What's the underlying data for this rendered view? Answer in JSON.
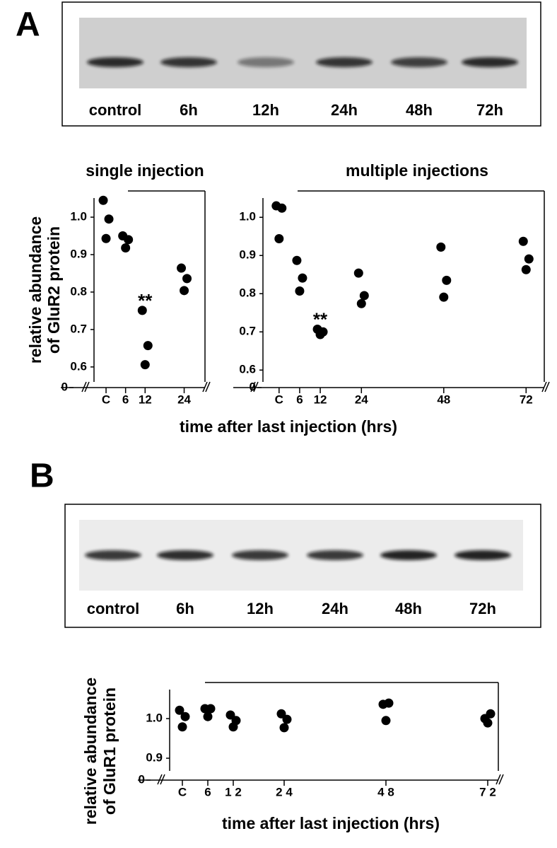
{
  "panels": [
    {
      "label": "A",
      "lanes": [
        "control",
        "6h",
        "12h",
        "24h",
        "48h",
        "72h"
      ]
    },
    {
      "label": "B",
      "lanes": [
        "control",
        "6h",
        "12h",
        "24h",
        "48h",
        "72h"
      ]
    }
  ],
  "chart_data": [
    {
      "type": "scatter",
      "title": "single injection",
      "ylabel": [
        "relative abundance",
        "of GluR2 protein"
      ],
      "xlabel": "time after last injection (hrs)",
      "color": "#000000",
      "axis_break": true,
      "x": [
        0,
        0,
        0,
        6,
        6,
        6,
        12,
        12,
        12,
        24,
        24,
        24
      ],
      "values": [
        1.045,
        0.995,
        0.943,
        0.95,
        0.94,
        0.918,
        0.751,
        0.657,
        0.606,
        0.864,
        0.836,
        0.804
      ],
      "xlim": [
        -3.7,
        30.4
      ],
      "xticks": [
        {
          "value": 0,
          "label": "C"
        },
        6,
        12,
        24
      ],
      "ylim": [
        0.56,
        1.07
      ],
      "yticks": [
        0,
        0.6,
        0.7,
        0.8,
        0.9,
        {
          "value": 1,
          "label": "1.0"
        }
      ],
      "annotations": [
        {
          "text": "**",
          "x": 12
        }
      ]
    },
    {
      "type": "scatter",
      "title": "multiple injections",
      "color": "#000000",
      "axis_break": true,
      "x": [
        0,
        0,
        0,
        6,
        6,
        6,
        12,
        12,
        12,
        24,
        24,
        24,
        48,
        48,
        48,
        72,
        72,
        72
      ],
      "values": [
        1.03,
        1.024,
        0.944,
        0.887,
        0.841,
        0.807,
        0.707,
        0.7,
        0.693,
        0.854,
        0.795,
        0.774,
        0.922,
        0.835,
        0.791,
        0.937,
        0.891,
        0.863
      ],
      "xlim": [
        -4.7,
        77.3
      ],
      "xticks": [
        {
          "value": 0,
          "label": "C"
        },
        6,
        12,
        24,
        48,
        72
      ],
      "ylim": [
        0.569,
        1.069
      ],
      "yticks": [
        0,
        0.6,
        0.7,
        0.8,
        0.9,
        {
          "value": 1,
          "label": "1.0"
        }
      ],
      "annotations": [
        {
          "text": "**",
          "x": 12
        }
      ]
    },
    {
      "type": "scatter",
      "ylabel": [
        "relative abundance",
        "of GluR1 protein"
      ],
      "xlabel": "time after last injection (hrs)",
      "color": "#000000",
      "axis_break": true,
      "x": [
        0,
        0,
        0,
        6,
        6,
        6,
        12,
        12,
        12,
        24,
        24,
        24,
        48,
        48,
        48,
        72,
        72,
        72
      ],
      "values": [
        1.021,
        1.005,
        0.979,
        1.025,
        1.025,
        1.005,
        1.009,
        0.995,
        0.979,
        1.012,
        0.998,
        0.977,
        1.036,
        1.039,
        0.995,
        1.0,
        1.012,
        0.989
      ],
      "xlim": [
        -3,
        74.5
      ],
      "xticks": [
        {
          "value": 0,
          "label": "C"
        },
        6,
        {
          "value": 12,
          "label": "1 2"
        },
        {
          "value": 24,
          "label": "2 4"
        },
        {
          "value": 48,
          "label": "4 8"
        },
        {
          "value": 72,
          "label": "7 2"
        }
      ],
      "ylim": [
        0.868,
        1.091
      ],
      "yticks": [
        0,
        0.9,
        {
          "value": 1,
          "label": "1.0"
        }
      ]
    }
  ]
}
